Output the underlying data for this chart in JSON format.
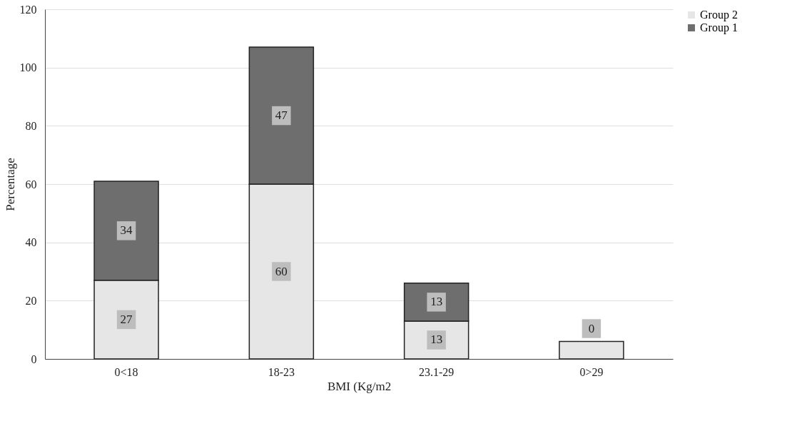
{
  "chart_data": {
    "type": "bar",
    "stacked": true,
    "xlabel": "BMI (Kg/m2",
    "ylabel": "Percentage",
    "categories": [
      "0<18",
      "18-23",
      "23.1-29",
      "0>29"
    ],
    "series": [
      {
        "name": "Group 2",
        "color": "#e6e6e6",
        "values": [
          27,
          60,
          13,
          6
        ],
        "value_labels": [
          "27",
          "60",
          "13",
          null
        ]
      },
      {
        "name": "Group 1",
        "color": "#6e6e6e",
        "values": [
          34,
          47,
          13,
          0
        ],
        "value_labels": [
          "34",
          "47",
          "13",
          "0"
        ]
      }
    ],
    "ylim": [
      0,
      120
    ],
    "yticks": [
      0,
      20,
      40,
      60,
      80,
      100,
      120
    ],
    "grid": "y",
    "legend": "right"
  }
}
